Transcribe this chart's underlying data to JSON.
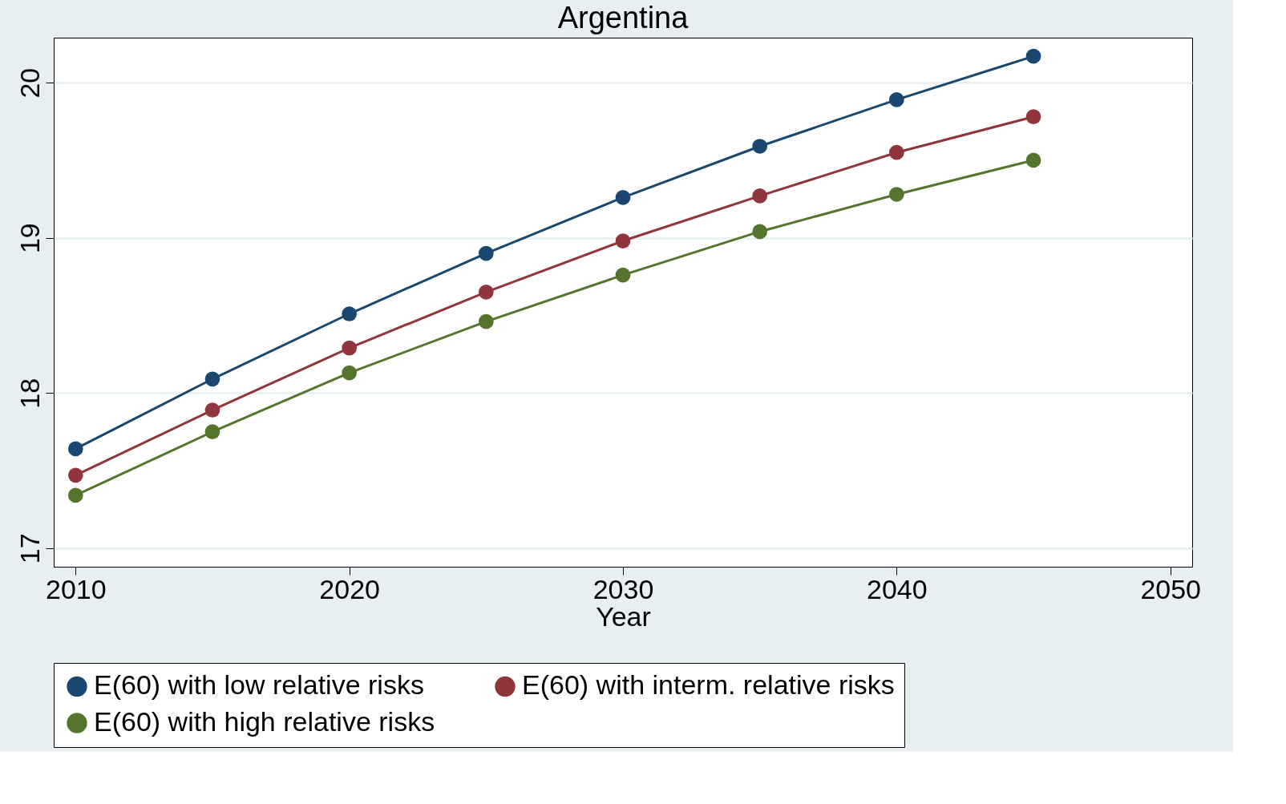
{
  "chart_data": {
    "type": "line",
    "title": "Argentina",
    "xlabel": "Year",
    "x": [
      2010,
      2015,
      2020,
      2025,
      2030,
      2035,
      2040,
      2045
    ],
    "series": [
      {
        "name": "E(60) with low relative risks",
        "color": "#1a476f",
        "values": [
          17.64,
          18.09,
          18.51,
          18.9,
          19.26,
          19.59,
          19.89,
          20.17
        ]
      },
      {
        "name": "E(60) with interm. relative risks",
        "color": "#90353b",
        "values": [
          17.47,
          17.89,
          18.29,
          18.65,
          18.98,
          19.27,
          19.55,
          19.78
        ]
      },
      {
        "name": "E(60)  with high relative risks",
        "color": "#55752f",
        "values": [
          17.34,
          17.75,
          18.13,
          18.46,
          18.76,
          19.04,
          19.28,
          19.5
        ]
      }
    ],
    "xlim": [
      2009.2,
      2050.8
    ],
    "xticks": [
      2010,
      2020,
      2030,
      2040,
      2050
    ],
    "ylim": [
      16.88,
      20.29
    ],
    "yticks": [
      17,
      18,
      19,
      20
    ],
    "grid": "y",
    "legend": "bottom",
    "marker": "circle",
    "line_style": "solid"
  }
}
